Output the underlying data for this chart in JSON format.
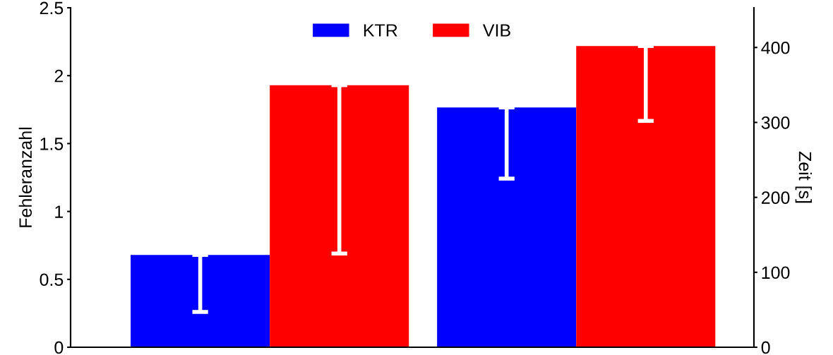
{
  "chart_data": {
    "type": "bar",
    "ylabel": "Fehleranzahl",
    "y2label": "Zeit [s]",
    "categories": [
      null,
      null
    ],
    "series": [
      {
        "name": "KTR",
        "color": "#0000ff",
        "values": [
          0.68,
          null
        ],
        "errors": [
          [
            0.26,
            0.68
          ],
          null
        ]
      },
      {
        "name": "VIB",
        "color": "#ff0000",
        "values": [
          1.93,
          null
        ],
        "errors": [
          [
            0.69,
            1.93
          ],
          null
        ]
      },
      {
        "color": "#0000ff",
        "axis": "y2",
        "values": [
          null,
          320
        ],
        "errors": [
          null,
          [
            225,
            320
          ]
        ]
      },
      {
        "color": "#ff0000",
        "axis": "y2",
        "values": [
          null,
          402
        ],
        "errors": [
          null,
          [
            302,
            402
          ]
        ]
      }
    ],
    "ylim": [
      0,
      2.5
    ],
    "yticks": [
      0,
      0.5,
      1,
      1.5,
      2,
      2.5
    ],
    "y2lim": [
      0,
      453
    ],
    "y2ticks": [
      0,
      100,
      200,
      300,
      400
    ],
    "legend": "top",
    "grid": false
  }
}
